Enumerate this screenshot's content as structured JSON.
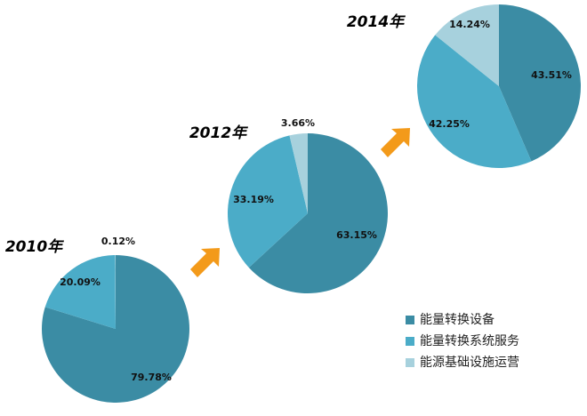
{
  "chart_data": [
    {
      "type": "pie",
      "title": "2010年",
      "categories": [
        "能量转换设备",
        "能量转换系统服务",
        "能源基础设施运营"
      ],
      "values": [
        79.78,
        20.09,
        0.12
      ],
      "value_labels": [
        "79.78%",
        "20.09%",
        "0.12%"
      ],
      "colors": [
        "#3b8ca4",
        "#4bacc8",
        "#a7d1dd"
      ]
    },
    {
      "type": "pie",
      "title": "2012年",
      "categories": [
        "能量转换设备",
        "能量转换系统服务",
        "能源基础设施运营"
      ],
      "values": [
        63.15,
        33.19,
        3.66
      ],
      "value_labels": [
        "63.15%",
        "33.19%",
        "3.66%"
      ],
      "colors": [
        "#3b8ca4",
        "#4bacc8",
        "#a7d1dd"
      ]
    },
    {
      "type": "pie",
      "title": "2014年",
      "categories": [
        "能量转换设备",
        "能量转换系统服务",
        "能源基础设施运营"
      ],
      "values": [
        43.51,
        42.25,
        14.24
      ],
      "value_labels": [
        "43.51%",
        "42.25%",
        "14.24%"
      ],
      "colors": [
        "#3b8ca4",
        "#4bacc8",
        "#a7d1dd"
      ]
    }
  ]
}
